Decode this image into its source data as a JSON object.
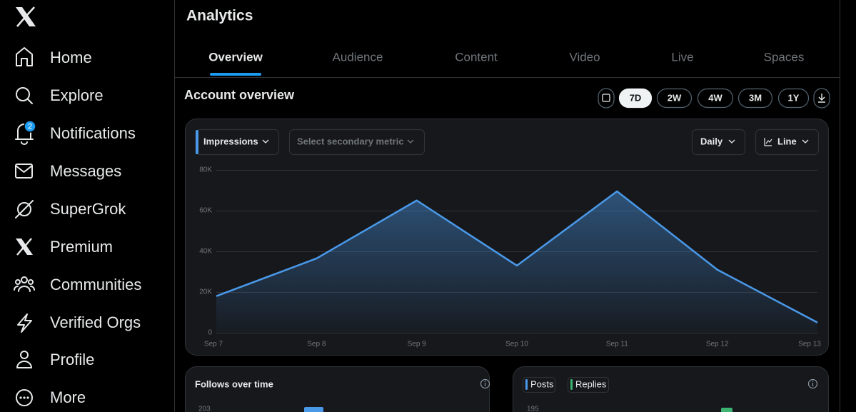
{
  "sidebar": {
    "nav": [
      "Home",
      "Explore",
      "Notifications",
      "Messages",
      "SuperGrok",
      "Premium",
      "Communities",
      "Verified Orgs",
      "Profile",
      "More"
    ],
    "notification_badge": "2"
  },
  "header": {
    "title": "Analytics",
    "tabs": [
      "Overview",
      "Audience",
      "Content",
      "Video",
      "Live",
      "Spaces"
    ]
  },
  "account_overview": {
    "title": "Account overview",
    "ranges": [
      "7D",
      "2W",
      "4W",
      "3M",
      "1Y"
    ],
    "secondary_metric": "Select secondary metric",
    "interval": "Daily",
    "chart_style": "Line"
  },
  "chart_data": {
    "type": "area",
    "categories": [
      "Sep 7",
      "Sep 8",
      "Sep 9",
      "Sep 10",
      "Sep 11",
      "Sep 12",
      "Sep 13"
    ],
    "series": [
      {
        "name": "Impressions",
        "color": "#4a99e9",
        "values": [
          18000,
          36500,
          65000,
          33000,
          69500,
          31000,
          5000
        ]
      }
    ],
    "ylim": [
      0,
      80000
    ],
    "yticks": [
      0,
      {
        "value": 20000,
        "label": "20K"
      },
      {
        "value": 40000,
        "label": "40K"
      },
      {
        "value": 60000,
        "label": "60K"
      },
      {
        "value": 80000,
        "label": "80K"
      }
    ],
    "grid": true
  },
  "panels": [
    {
      "title": "Follows over time",
      "ytick": 203
    },
    {
      "legend": [
        "Posts",
        "Replies"
      ],
      "ytick": 195
    }
  ]
}
